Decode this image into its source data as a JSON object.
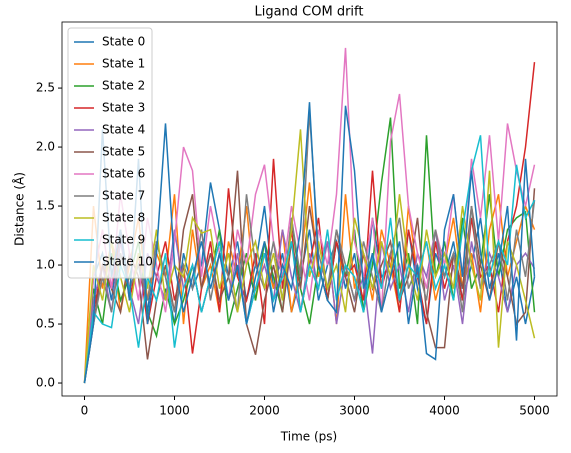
{
  "chart_data": {
    "type": "line",
    "title": "Ligand COM drift",
    "xlabel": "Time (ps)",
    "ylabel": "Distance (Å)",
    "x": [
      0,
      100,
      200,
      300,
      400,
      500,
      600,
      700,
      800,
      900,
      1000,
      1100,
      1200,
      1300,
      1400,
      1500,
      1600,
      1700,
      1800,
      1900,
      2000,
      2100,
      2200,
      2300,
      2400,
      2500,
      2600,
      2700,
      2800,
      2900,
      3000,
      3100,
      3200,
      3300,
      3400,
      3500,
      3600,
      3700,
      3800,
      3900,
      4000,
      4100,
      4200,
      4300,
      4400,
      4500,
      4600,
      4700,
      4800,
      4900,
      5000
    ],
    "xlim": [
      -250,
      5250
    ],
    "ylim": [
      -0.11,
      3.06
    ],
    "xticks": [
      0,
      1000,
      2000,
      3000,
      4000,
      5000
    ],
    "yticks": [
      {
        "value": 0,
        "label": "0.0"
      },
      0.5,
      {
        "value": 1,
        "label": "1.0"
      },
      1.5,
      {
        "value": 2,
        "label": "2.0"
      },
      2.5
    ],
    "legend": "upper left",
    "series": [
      {
        "name": "State 0",
        "color": "#1f77b4",
        "values": [
          0,
          0.9,
          1.1,
          0.7,
          1.3,
          0.8,
          1.0,
          0.6,
          1.2,
          0.9,
          0.5,
          1.1,
          0.8,
          1.0,
          1.7,
          1.3,
          0.9,
          1.2,
          0.7,
          1.0,
          1.5,
          0.8,
          1.1,
          0.6,
          0.9,
          1.3,
          0.7,
          1.0,
          1.2,
          0.8,
          1.1,
          0.6,
          1.4,
          0.9,
          1.0,
          0.7,
          1.3,
          0.8,
          0.5,
          1.1,
          0.9,
          1.2,
          0.7,
          1.0,
          1.4,
          0.8,
          1.1,
          0.6,
          0.9,
          0.5,
          0.9
        ]
      },
      {
        "name": "State 1",
        "color": "#ff7f0e",
        "values": [
          0,
          1.5,
          0.8,
          1.2,
          0.6,
          1.0,
          1.4,
          0.7,
          1.1,
          0.9,
          1.6,
          0.5,
          1.3,
          0.8,
          1.0,
          0.6,
          1.2,
          0.9,
          1.5,
          0.7,
          1.1,
          0.8,
          1.3,
          0.6,
          1.0,
          1.7,
          0.9,
          1.2,
          0.5,
          1.6,
          0.8,
          1.1,
          0.7,
          1.3,
          1.0,
          0.6,
          1.5,
          0.9,
          1.2,
          0.7,
          1.0,
          1.4,
          0.8,
          1.1,
          0.6,
          1.3,
          1.6,
          0.9,
          1.2,
          1.5,
          1.3
        ]
      },
      {
        "name": "State 2",
        "color": "#2ca02c",
        "values": [
          0,
          0.8,
          0.5,
          1.1,
          0.7,
          0.9,
          1.2,
          0.6,
          0.4,
          0.8,
          0.5,
          0.7,
          1.0,
          0.6,
          0.9,
          1.3,
          0.5,
          0.8,
          1.1,
          0.7,
          1.2,
          0.9,
          0.6,
          1.4,
          0.8,
          0.5,
          1.0,
          0.7,
          1.2,
          0.9,
          1.3,
          0.6,
          1.0,
          1.7,
          2.25,
          0.8,
          1.1,
          0.5,
          2.1,
          0.9,
          1.2,
          0.7,
          1.4,
          0.8,
          1.0,
          1.6,
          0.9,
          1.3,
          1.4,
          1.45,
          0.6
        ]
      },
      {
        "name": "State 3",
        "color": "#d62728",
        "values": [
          0,
          0.6,
          1.0,
          0.8,
          1.3,
          0.7,
          1.1,
          0.5,
          0.9,
          1.2,
          0.7,
          1.0,
          0.25,
          0.8,
          1.2,
          0.6,
          1.65,
          0.9,
          0.7,
          1.1,
          0.5,
          1.9,
          0.8,
          1.3,
          0.6,
          1.0,
          1.4,
          0.7,
          1.2,
          0.9,
          1.0,
          0.7,
          1.8,
          0.8,
          1.1,
          0.6,
          1.3,
          0.9,
          0.5,
          1.2,
          0.8,
          1.1,
          0.7,
          1.4,
          0.9,
          1.0,
          0.6,
          1.2,
          1.5,
          2.0,
          2.72
        ]
      },
      {
        "name": "State 4",
        "color": "#9467bd",
        "values": [
          0,
          0.7,
          1.0,
          0.6,
          1.2,
          0.8,
          0.5,
          1.1,
          0.9,
          0.7,
          1.3,
          0.8,
          1.0,
          0.6,
          0.9,
          1.2,
          0.7,
          1.1,
          0.5,
          0.8,
          1.0,
          0.7,
          1.3,
          0.9,
          0.6,
          1.1,
          0.8,
          1.2,
          0.5,
          1.0,
          0.7,
          0.9,
          0.25,
          1.2,
          0.8,
          1.0,
          0.6,
          1.1,
          0.9,
          1.3,
          0.7,
          1.0,
          0.5,
          1.2,
          0.8,
          1.1,
          0.9,
          0.6,
          1.0,
          1.1,
          0.97
        ]
      },
      {
        "name": "State 5",
        "color": "#8c564b",
        "values": [
          0,
          0.5,
          1.0,
          0.8,
          0.6,
          1.1,
          0.9,
          0.2,
          0.7,
          1.0,
          0.6,
          1.3,
          1.6,
          0.8,
          1.1,
          0.7,
          0.9,
          1.8,
          0.5,
          0.24,
          0.7,
          1.0,
          0.6,
          1.2,
          0.8,
          1.5,
          1.0,
          0.7,
          1.3,
          0.9,
          0.6,
          1.1,
          0.8,
          1.0,
          1.2,
          0.7,
          0.9,
          1.4,
          0.6,
          0.3,
          0.3,
          1.1,
          0.8,
          1.5,
          1.0,
          0.7,
          1.2,
          0.9,
          0.5,
          0.6,
          1.65
        ]
      },
      {
        "name": "State 6",
        "color": "#e377c2",
        "values": [
          0,
          0.9,
          1.3,
          0.8,
          1.6,
          1.1,
          0.7,
          1.4,
          1.0,
          0.6,
          1.2,
          2.0,
          1.8,
          0.9,
          1.5,
          1.1,
          0.7,
          1.3,
          1.0,
          1.6,
          1.85,
          1.2,
          0.9,
          1.5,
          1.1,
          0.7,
          1.3,
          1.0,
          1.6,
          2.84,
          1.2,
          0.9,
          1.4,
          0.6,
          2.05,
          2.45,
          1.5,
          1.1,
          0.8,
          1.3,
          1.0,
          1.6,
          0.9,
          1.9,
          1.4,
          2.1,
          1.2,
          2.2,
          1.8,
          1.5,
          1.85
        ]
      },
      {
        "name": "State 7",
        "color": "#7f7f7f",
        "values": [
          0,
          0.5,
          0.9,
          0.6,
          1.1,
          0.8,
          1.0,
          0.7,
          1.2,
          0.9,
          0.6,
          1.0,
          0.8,
          1.3,
          0.7,
          1.1,
          0.9,
          0.6,
          1.6,
          1.0,
          0.8,
          1.2,
          0.7,
          1.4,
          0.9,
          2.3,
          1.1,
          0.8,
          1.3,
          1.0,
          0.7,
          1.2,
          0.9,
          0.6,
          1.1,
          1.4,
          0.8,
          1.0,
          0.7,
          1.3,
          0.9,
          1.1,
          0.6,
          1.5,
          0.8,
          1.0,
          1.2,
          0.7,
          1.3,
          0.9,
          1.55
        ]
      },
      {
        "name": "State 8",
        "color": "#bcbd22",
        "values": [
          0,
          1.0,
          0.7,
          1.2,
          0.9,
          0.6,
          1.1,
          0.8,
          1.3,
          0.7,
          1.0,
          0.9,
          1.4,
          1.27,
          1.3,
          0.8,
          1.1,
          0.6,
          1.0,
          1.2,
          0.8,
          1.1,
          0.7,
          1.3,
          2.15,
          0.9,
          1.2,
          0.8,
          1.0,
          0.6,
          1.4,
          1.1,
          0.8,
          1.2,
          0.9,
          1.6,
          1.0,
          0.7,
          1.3,
          0.9,
          1.1,
          0.8,
          1.5,
          1.0,
          0.7,
          1.8,
          0.3,
          1.2,
          1.0,
          0.7,
          0.38
        ]
      },
      {
        "name": "State 9",
        "color": "#17becf",
        "values": [
          0,
          0.6,
          0.5,
          0.47,
          1.0,
          0.8,
          0.3,
          0.9,
          0.7,
          1.1,
          0.3,
          0.8,
          1.0,
          0.6,
          0.9,
          1.2,
          0.7,
          1.0,
          0.5,
          0.8,
          1.1,
          0.7,
          0.9,
          1.2,
          0.6,
          1.0,
          0.8,
          1.3,
          0.7,
          1.0,
          0.9,
          0.6,
          1.1,
          0.8,
          1.4,
          0.7,
          1.0,
          0.9,
          1.2,
          0.8,
          1.0,
          0.7,
          1.3,
          1.8,
          2.1,
          0.9,
          1.2,
          1.0,
          1.85,
          1.4,
          1.55
        ]
      },
      {
        "name": "State 10",
        "color": "#1f77b4",
        "values": [
          0,
          0.5,
          2.15,
          0.9,
          1.3,
          0.7,
          1.9,
          0.5,
          1.1,
          2.2,
          1.0,
          0.6,
          0.9,
          1.2,
          0.8,
          1.1,
          0.7,
          1.0,
          0.5,
          0.9,
          1.2,
          0.6,
          1.0,
          0.8,
          1.3,
          2.38,
          1.0,
          0.7,
          0.6,
          2.35,
          1.8,
          0.8,
          1.1,
          0.6,
          0.9,
          1.2,
          0.5,
          1.0,
          0.25,
          0.2,
          1.3,
          1.6,
          0.9,
          1.8,
          1.1,
          0.7,
          1.0,
          1.5,
          0.36,
          1.9,
          0.9
        ]
      }
    ]
  }
}
